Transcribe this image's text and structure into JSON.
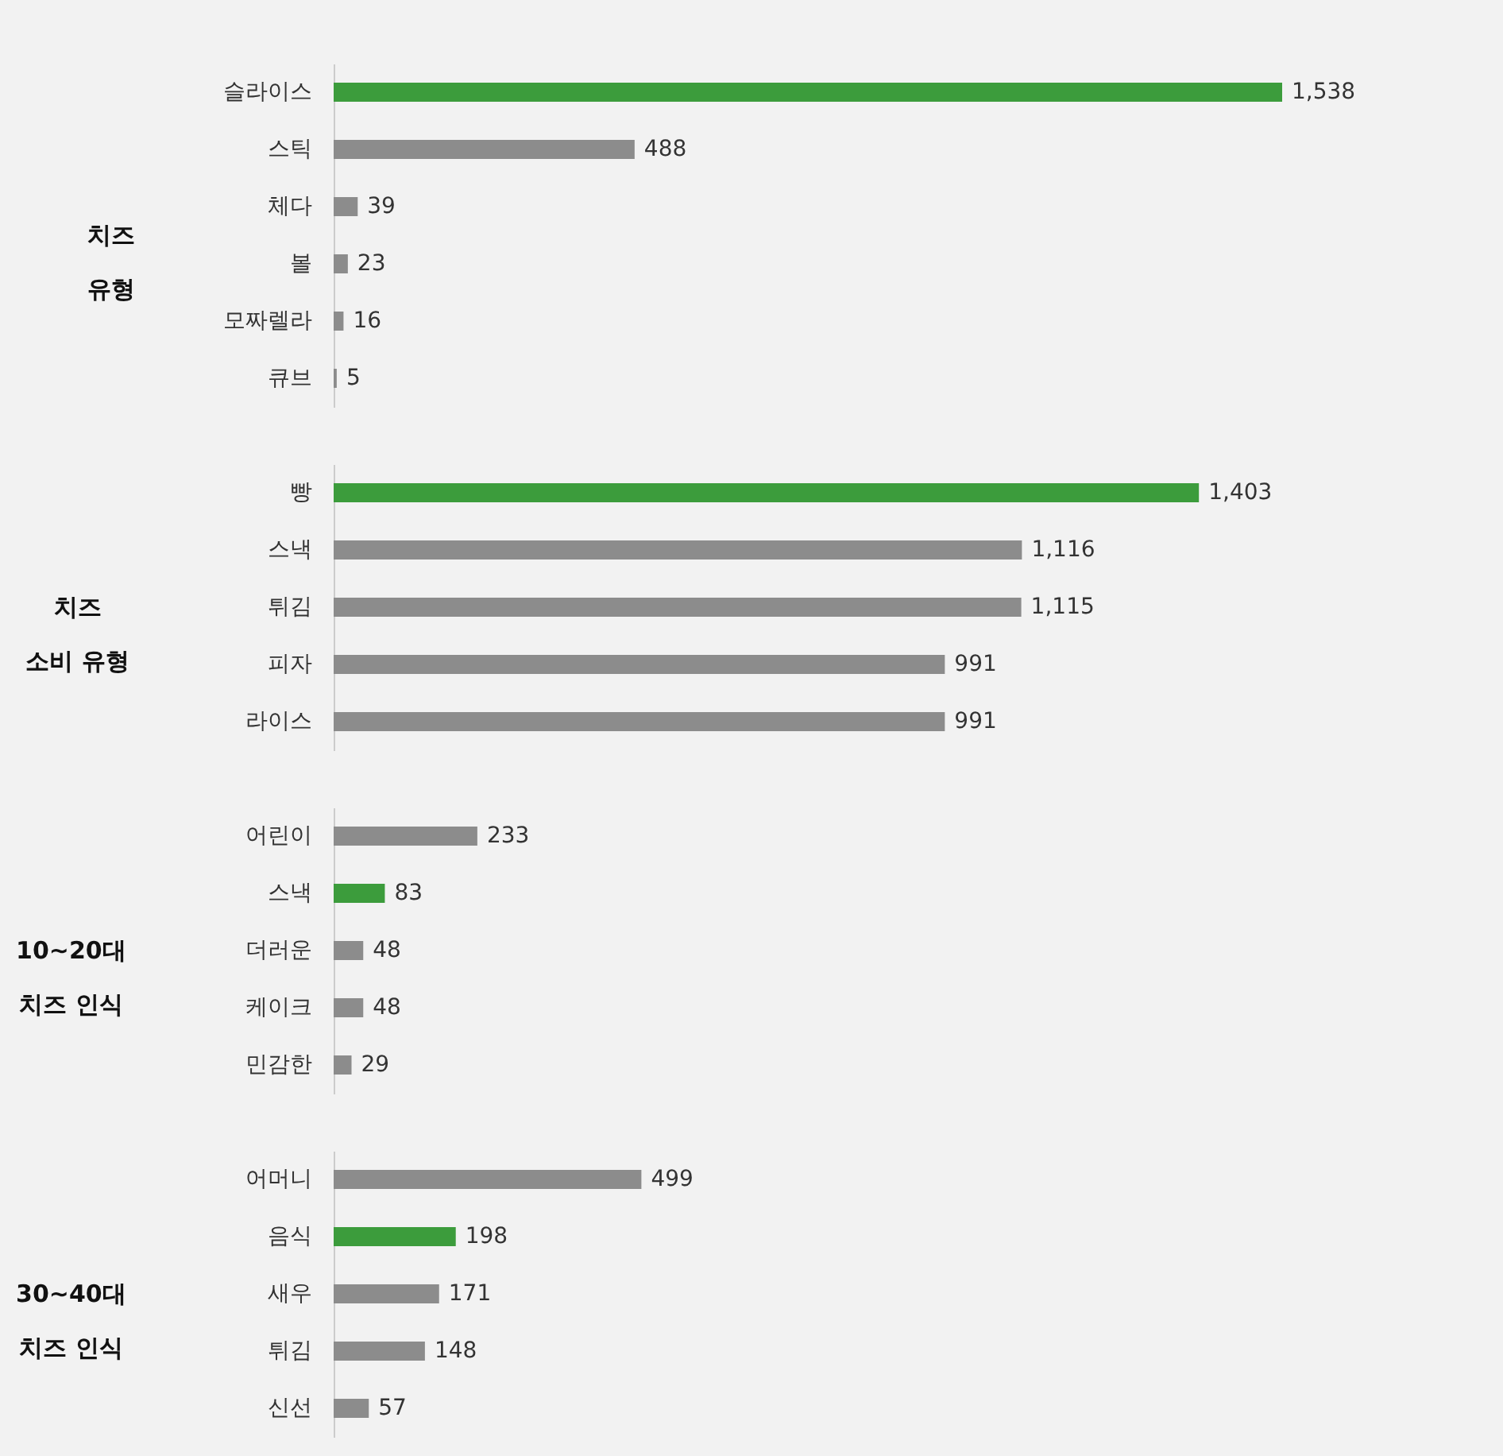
{
  "chart_data": [
    {
      "type": "bar",
      "orientation": "horizontal",
      "title": "치즈 유형",
      "categories": [
        "슬라이스",
        "스틱",
        "체다",
        "볼",
        "모짜렐라",
        "큐브"
      ],
      "values": [
        1538,
        488,
        39,
        23,
        16,
        5
      ],
      "value_labels": [
        "1,538",
        "488",
        "39",
        "23",
        "16",
        "5"
      ],
      "colors": [
        "#3c9c3c",
        "#8c8c8c",
        "#8c8c8c",
        "#8c8c8c",
        "#8c8c8c",
        "#8c8c8c"
      ]
    },
    {
      "type": "bar",
      "orientation": "horizontal",
      "title": "치즈 소비 유형",
      "categories": [
        "빵",
        "스낵",
        "튀김",
        "피자",
        "라이스"
      ],
      "values": [
        1403,
        1116,
        1115,
        991,
        991
      ],
      "value_labels": [
        "1,403",
        "1,116",
        "1,115",
        "991",
        "991"
      ],
      "colors": [
        "#3c9c3c",
        "#8c8c8c",
        "#8c8c8c",
        "#8c8c8c",
        "#8c8c8c"
      ]
    },
    {
      "type": "bar",
      "orientation": "horizontal",
      "title": "10~20대 치즈 인식",
      "categories": [
        "어린이",
        "스낵",
        "더러운",
        "케이크",
        "민감한"
      ],
      "values": [
        233,
        83,
        48,
        48,
        29
      ],
      "value_labels": [
        "233",
        "83",
        "48",
        "48",
        "29"
      ],
      "colors": [
        "#8c8c8c",
        "#3c9c3c",
        "#8c8c8c",
        "#8c8c8c",
        "#8c8c8c"
      ]
    },
    {
      "type": "bar",
      "orientation": "horizontal",
      "title": "30~40대 치즈 인식",
      "categories": [
        "어머니",
        "음식",
        "새우",
        "튀김",
        "신선"
      ],
      "values": [
        499,
        198,
        171,
        148,
        57
      ],
      "value_labels": [
        "499",
        "198",
        "171",
        "148",
        "57"
      ],
      "colors": [
        "#8c8c8c",
        "#3c9c3c",
        "#8c8c8c",
        "#8c8c8c",
        "#8c8c8c"
      ]
    }
  ]
}
